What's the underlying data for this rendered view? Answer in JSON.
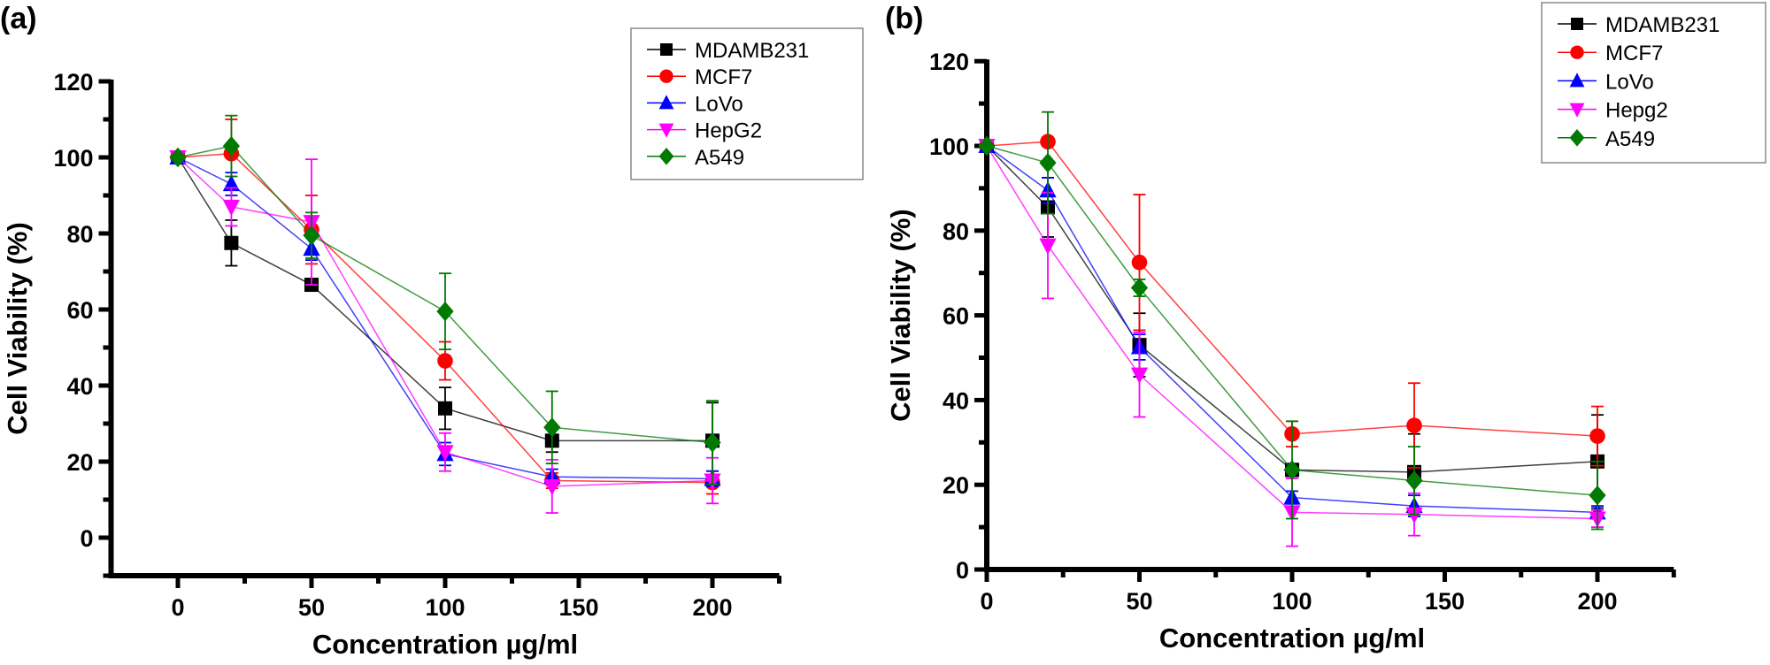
{
  "chart_data": [
    {
      "type": "line",
      "panel_label": "(a)",
      "xlabel": "Concentration  µg/ml",
      "ylabel": "Cell Viability (%)",
      "xlim": [
        -25,
        225
      ],
      "ylim": [
        -10,
        120
      ],
      "xticks": [
        0,
        50,
        100,
        150,
        200
      ],
      "yticks": [
        0,
        20,
        40,
        60,
        80,
        100,
        120
      ],
      "grid": false,
      "legend_position": "top-right",
      "x": [
        0,
        20,
        50,
        100,
        140,
        200
      ],
      "series": [
        {
          "name": "MDAMB231",
          "color": "#000000",
          "marker": "square",
          "values": [
            100,
            77.5,
            66.5,
            34,
            25.5,
            25.5
          ],
          "errors": [
            0.5,
            6,
            1,
            5.5,
            3,
            10
          ]
        },
        {
          "name": "MCF7",
          "color": "#ff0000",
          "marker": "circle",
          "values": [
            100,
            101,
            81,
            46.5,
            15,
            14.5
          ],
          "errors": [
            0.5,
            9,
            9,
            5,
            2,
            3
          ]
        },
        {
          "name": "LoVo",
          "color": "#0000ff",
          "marker": "triangle-up",
          "values": [
            100,
            93,
            76,
            22,
            16,
            15.5
          ],
          "errors": [
            0.5,
            3,
            3,
            3,
            2,
            2
          ]
        },
        {
          "name": "HepG2",
          "color": "#ff00ff",
          "marker": "triangle-down",
          "values": [
            100,
            87,
            83,
            22.5,
            13.5,
            15
          ],
          "errors": [
            0.5,
            5,
            16.5,
            5,
            7,
            6
          ]
        },
        {
          "name": "A549",
          "color": "#007a00",
          "marker": "diamond",
          "values": [
            100,
            103,
            79.5,
            59.5,
            29,
            25
          ],
          "errors": [
            0.5,
            8,
            6,
            10,
            9.5,
            11
          ]
        }
      ]
    },
    {
      "type": "line",
      "panel_label": "(b)",
      "xlabel": "Concentration  µg/ml",
      "ylabel": "Cell Viability (%)",
      "xlim": [
        0,
        225
      ],
      "ylim": [
        0,
        120
      ],
      "xticks": [
        0,
        50,
        100,
        150,
        200
      ],
      "yticks": [
        0,
        20,
        40,
        60,
        80,
        100,
        120
      ],
      "grid": false,
      "legend_position": "top-right",
      "x": [
        0,
        20,
        50,
        100,
        140,
        200
      ],
      "series": [
        {
          "name": "MDAMB231",
          "color": "#000000",
          "marker": "square",
          "values": [
            100,
            85.5,
            53,
            23.5,
            23,
            25.5
          ],
          "errors": [
            0.5,
            7,
            7.5,
            1.5,
            9,
            11
          ]
        },
        {
          "name": "MCF7",
          "color": "#ff0000",
          "marker": "circle",
          "values": [
            100,
            101,
            72.5,
            32,
            34,
            31.5
          ],
          "errors": [
            0.5,
            1,
            16,
            3,
            10,
            7
          ]
        },
        {
          "name": "LoVo",
          "color": "#0000ff",
          "marker": "triangle-up",
          "values": [
            100,
            89.5,
            52.5,
            17,
            15,
            13.5
          ],
          "errors": [
            0.5,
            3,
            3,
            1.5,
            2.5,
            1.5
          ]
        },
        {
          "name": "Hepg2",
          "color": "#ff00ff",
          "marker": "triangle-down",
          "values": [
            100,
            76.5,
            46,
            13.5,
            13,
            12
          ],
          "errors": [
            0.5,
            12.5,
            10,
            8,
            5,
            2
          ]
        },
        {
          "name": "A549",
          "color": "#007a00",
          "marker": "diamond",
          "values": [
            100,
            96,
            66.5,
            23.5,
            21,
            17.5
          ],
          "errors": [
            0.5,
            12,
            2,
            11.5,
            8,
            8
          ]
        }
      ]
    }
  ]
}
